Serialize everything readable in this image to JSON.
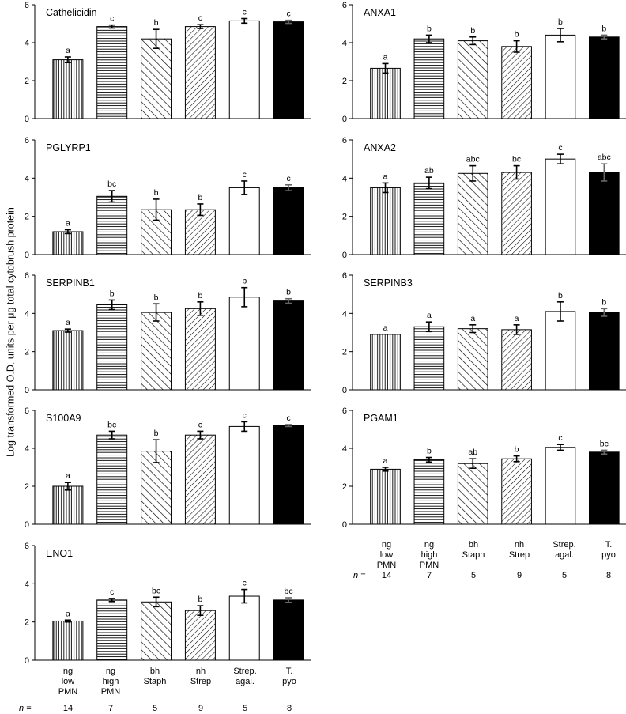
{
  "figure": {
    "ylabel": "Log transformed O.D. units per μg total cytobrush protein",
    "n_label": "n =",
    "categories": [
      [
        "ng",
        "low",
        "PMN"
      ],
      [
        "ng",
        "high",
        "PMN"
      ],
      [
        "bh",
        "Staph"
      ],
      [
        "nh",
        "Strep"
      ],
      [
        "Strep.",
        "agal."
      ],
      [
        "T.",
        "pyo"
      ]
    ],
    "n_values": [
      "14",
      "7",
      "5",
      "9",
      "5",
      "8"
    ]
  },
  "chart_data": [
    {
      "type": "bar",
      "title": "Cathelicidin",
      "ylim": [
        0,
        6
      ],
      "yticks": [
        0,
        2,
        4,
        6
      ],
      "categories": [
        "ng low PMN",
        "ng high PMN",
        "bh Staph",
        "nh Strep",
        "Strep. agal.",
        "T. pyo"
      ],
      "values": [
        3.1,
        4.85,
        4.2,
        4.85,
        5.15,
        5.1
      ],
      "errors": [
        0.15,
        0.08,
        0.5,
        0.1,
        0.12,
        0.08
      ],
      "letters": [
        "a",
        "c",
        "b",
        "c",
        "c",
        "c"
      ]
    },
    {
      "type": "bar",
      "title": "ANXA1",
      "ylim": [
        0,
        6
      ],
      "yticks": [
        0,
        2,
        4,
        6
      ],
      "categories": [
        "ng low PMN",
        "ng high PMN",
        "bh Staph",
        "nh Strep",
        "Strep. agal.",
        "T. pyo"
      ],
      "values": [
        2.65,
        4.2,
        4.1,
        3.8,
        4.4,
        4.3
      ],
      "errors": [
        0.25,
        0.2,
        0.2,
        0.3,
        0.35,
        0.1
      ],
      "letters": [
        "a",
        "b",
        "b",
        "b",
        "b",
        "b"
      ]
    },
    {
      "type": "bar",
      "title": "PGLYRP1",
      "ylim": [
        0,
        6
      ],
      "yticks": [
        0,
        2,
        4,
        6
      ],
      "categories": [
        "ng low PMN",
        "ng high PMN",
        "bh Staph",
        "nh Strep",
        "Strep. agal.",
        "T. pyo"
      ],
      "values": [
        1.2,
        3.05,
        2.35,
        2.35,
        3.5,
        3.5
      ],
      "errors": [
        0.1,
        0.3,
        0.55,
        0.3,
        0.35,
        0.15
      ],
      "letters": [
        "a",
        "bc",
        "b",
        "b",
        "c",
        "c"
      ]
    },
    {
      "type": "bar",
      "title": "ANXA2",
      "ylim": [
        0,
        6
      ],
      "yticks": [
        0,
        2,
        4,
        6
      ],
      "categories": [
        "ng low PMN",
        "ng high PMN",
        "bh Staph",
        "nh Strep",
        "Strep. agal.",
        "T. pyo"
      ],
      "values": [
        3.5,
        3.75,
        4.25,
        4.3,
        5.0,
        4.3
      ],
      "errors": [
        0.25,
        0.3,
        0.4,
        0.35,
        0.25,
        0.45
      ],
      "letters": [
        "a",
        "ab",
        "abc",
        "bc",
        "c",
        "abc"
      ]
    },
    {
      "type": "bar",
      "title": "SERPINB1",
      "ylim": [
        0,
        6
      ],
      "yticks": [
        0,
        2,
        4,
        6
      ],
      "categories": [
        "ng low PMN",
        "ng high PMN",
        "bh Staph",
        "nh Strep",
        "Strep. agal.",
        "T. pyo"
      ],
      "values": [
        3.1,
        4.45,
        4.05,
        4.25,
        4.85,
        4.65
      ],
      "errors": [
        0.08,
        0.25,
        0.45,
        0.35,
        0.5,
        0.12
      ],
      "letters": [
        "a",
        "b",
        "b",
        "b",
        "b",
        "b"
      ]
    },
    {
      "type": "bar",
      "title": "SERPINB3",
      "ylim": [
        0,
        6
      ],
      "yticks": [
        0,
        2,
        4,
        6
      ],
      "categories": [
        "ng low PMN",
        "ng high PMN",
        "bh Staph",
        "nh Strep",
        "Strep. agal.",
        "T. pyo"
      ],
      "values": [
        2.9,
        3.3,
        3.2,
        3.15,
        4.1,
        4.05
      ],
      "errors": [
        0,
        0.25,
        0.2,
        0.25,
        0.5,
        0.2
      ],
      "letters": [
        "a",
        "a",
        "a",
        "a",
        "b",
        "b"
      ]
    },
    {
      "type": "bar",
      "title": "S100A9",
      "ylim": [
        0,
        6
      ],
      "yticks": [
        0,
        2,
        4,
        6
      ],
      "categories": [
        "ng low PMN",
        "ng high PMN",
        "bh Staph",
        "nh Strep",
        "Strep. agal.",
        "T. pyo"
      ],
      "values": [
        2.0,
        4.7,
        3.85,
        4.7,
        5.15,
        5.2
      ],
      "errors": [
        0.2,
        0.2,
        0.6,
        0.2,
        0.25,
        0.05
      ],
      "letters": [
        "a",
        "bc",
        "b",
        "c",
        "c",
        "c"
      ]
    },
    {
      "type": "bar",
      "title": "PGAM1",
      "ylim": [
        0,
        6
      ],
      "yticks": [
        0,
        2,
        4,
        6
      ],
      "categories": [
        "ng low PMN",
        "ng high PMN",
        "bh Staph",
        "nh Strep",
        "Strep. agal.",
        "T. pyo"
      ],
      "values": [
        2.9,
        3.4,
        3.2,
        3.45,
        4.05,
        3.8
      ],
      "errors": [
        0.1,
        0.12,
        0.25,
        0.15,
        0.15,
        0.1
      ],
      "letters": [
        "a",
        "b",
        "ab",
        "b",
        "c",
        "bc"
      ]
    },
    {
      "type": "bar",
      "title": "ENO1",
      "ylim": [
        0,
        6
      ],
      "yticks": [
        0,
        2,
        4,
        6
      ],
      "categories": [
        "ng low PMN",
        "ng high PMN",
        "bh Staph",
        "nh Strep",
        "Strep. agal.",
        "T. pyo"
      ],
      "values": [
        2.05,
        3.15,
        3.05,
        2.6,
        3.35,
        3.15
      ],
      "errors": [
        0.05,
        0.08,
        0.25,
        0.25,
        0.35,
        0.12
      ],
      "letters": [
        "a",
        "c",
        "bc",
        "b",
        "c",
        "bc"
      ]
    }
  ]
}
